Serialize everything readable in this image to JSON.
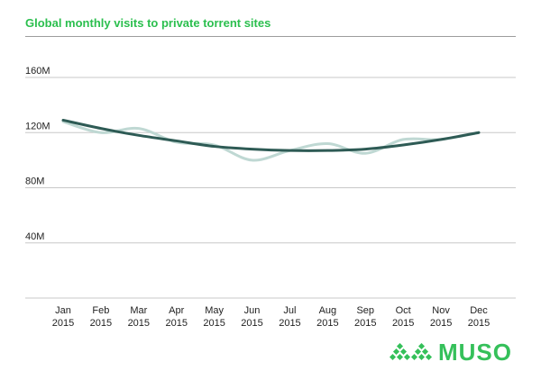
{
  "title": "Global monthly visits to private torrent sites",
  "brand": "MUSO",
  "colors": {
    "title": "#2bbf4e",
    "trend_line": "#2e5b55",
    "actual_line": "#bfd8d3",
    "grid": "#c8c8c8",
    "brand": "#35c05a"
  },
  "chart_data": {
    "type": "line",
    "categories": [
      [
        "Jan",
        "2015"
      ],
      [
        "Feb",
        "2015"
      ],
      [
        "Mar",
        "2015"
      ],
      [
        "Apr",
        "2015"
      ],
      [
        "May",
        "2015"
      ],
      [
        "Jun",
        "2015"
      ],
      [
        "Jul",
        "2015"
      ],
      [
        "Aug",
        "2015"
      ],
      [
        "Sep",
        "2015"
      ],
      [
        "Oct",
        "2015"
      ],
      [
        "Nov",
        "2015"
      ],
      [
        "Dec",
        "2015"
      ]
    ],
    "series": [
      {
        "values": [
          128,
          120,
          123,
          113,
          111,
          100,
          107,
          112,
          105,
          115,
          115,
          120
        ]
      },
      {
        "values": [
          129,
          123,
          118,
          114,
          110,
          108,
          107,
          107,
          108,
          111,
          115,
          120
        ]
      }
    ],
    "yticks": [
      40,
      80,
      120,
      160
    ],
    "ytick_labels": [
      "40M",
      "80M",
      "120M",
      "160M"
    ],
    "ylim": [
      0,
      160
    ],
    "grid": true,
    "legend": "none"
  }
}
